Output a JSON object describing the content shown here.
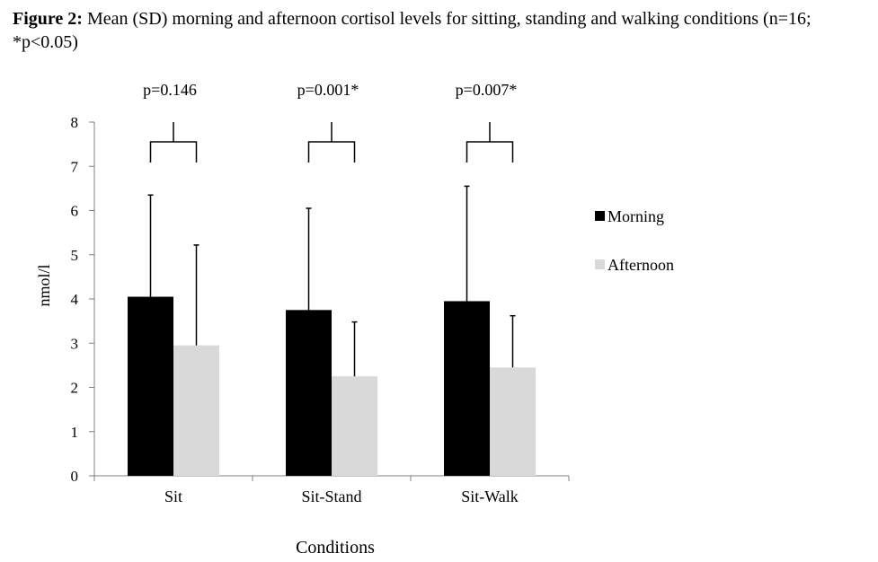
{
  "figure": {
    "label": "Figure 2:",
    "caption": " Mean (SD) morning and afternoon cortisol levels for sitting, standing and walking conditions (n=16; *p<0.05)"
  },
  "chart_data": {
    "type": "bar",
    "categories": [
      "Sit",
      "Sit-Stand",
      "Sit-Walk"
    ],
    "series": [
      {
        "name": "Morning",
        "color": "#000000",
        "values": [
          4.05,
          3.75,
          3.95
        ],
        "sd": [
          2.3,
          2.3,
          2.6
        ]
      },
      {
        "name": "Afternoon",
        "color": "#d9d9d9",
        "values": [
          2.95,
          2.25,
          2.45
        ],
        "sd": [
          2.27,
          1.23,
          1.17
        ]
      }
    ],
    "ylim": [
      0,
      8
    ],
    "yticks": [
      "0",
      "1",
      "2",
      "3",
      "4",
      "5",
      "6",
      "7",
      "8"
    ],
    "xlabel": "Conditions",
    "ylabel": "nmol/l",
    "legend_position": "right",
    "grid": false,
    "significance": [
      {
        "category": "Sit",
        "label": "p=0.146"
      },
      {
        "category": "Sit-Stand",
        "label": "p=0.001*"
      },
      {
        "category": "Sit-Walk",
        "label": "p=0.007*"
      }
    ]
  }
}
